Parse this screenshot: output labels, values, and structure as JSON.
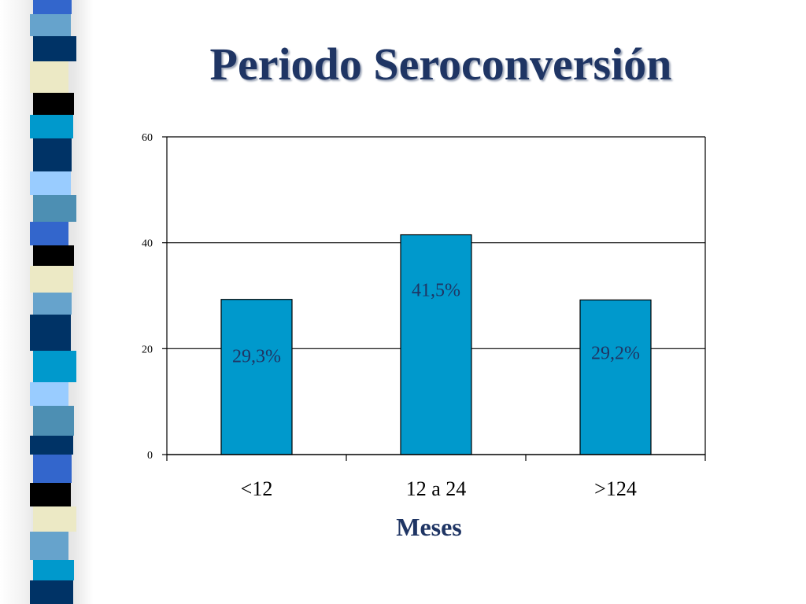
{
  "slide": {
    "title": "Periodo Seroconversión"
  },
  "colors": {
    "bar": "#0099cc",
    "title": "#1f3564",
    "strip": [
      "#3366cc",
      "#66a3cc",
      "#003366",
      "#ece9c5",
      "#000000",
      "#0099cc",
      "#99ccff",
      "#4d8fb3"
    ]
  },
  "chart_data": {
    "type": "bar",
    "categories": [
      "<12",
      "12 a 24",
      ">124"
    ],
    "values": [
      29.3,
      41.5,
      29.2
    ],
    "data_labels": [
      "29,3%",
      "41,5%",
      "29,2%"
    ],
    "xlabel": "Meses",
    "ylabel": "",
    "ylim": [
      0,
      60
    ],
    "yticks": [
      "0",
      "20",
      "40",
      "60"
    ],
    "grid": true,
    "legend": "none"
  }
}
